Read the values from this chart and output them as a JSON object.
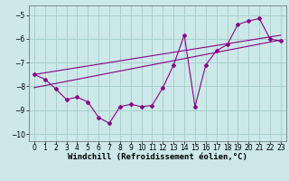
{
  "background_color": "#cce8e8",
  "grid_color": "#aacfcf",
  "line_color": "#880088",
  "xlabel": "Windchill (Refroidissement éolien,°C)",
  "xlabel_fontsize": 6.5,
  "tick_fontsize": 5.5,
  "xlim": [
    -0.5,
    23.5
  ],
  "ylim": [
    -10.3,
    -4.6
  ],
  "yticks": [
    -10,
    -9,
    -8,
    -7,
    -6,
    -5
  ],
  "xticks": [
    0,
    1,
    2,
    3,
    4,
    5,
    6,
    7,
    8,
    9,
    10,
    11,
    12,
    13,
    14,
    15,
    16,
    17,
    18,
    19,
    20,
    21,
    22,
    23
  ],
  "data_x": [
    0,
    1,
    2,
    3,
    4,
    5,
    6,
    7,
    8,
    9,
    10,
    11,
    12,
    13,
    14,
    15,
    16,
    17,
    18,
    19,
    20,
    21,
    22,
    23
  ],
  "data_y": [
    -7.5,
    -7.7,
    -8.1,
    -8.55,
    -8.45,
    -8.65,
    -9.3,
    -9.55,
    -8.85,
    -8.75,
    -8.85,
    -8.8,
    -8.05,
    -7.1,
    -5.85,
    -8.85,
    -7.1,
    -6.5,
    -6.25,
    -5.4,
    -5.25,
    -5.15,
    -6.0,
    -6.1
  ],
  "trend1_x": [
    0,
    23
  ],
  "trend1_y": [
    -7.5,
    -5.85
  ],
  "trend2_x": [
    0,
    23
  ],
  "trend2_y": [
    -8.05,
    -6.05
  ]
}
